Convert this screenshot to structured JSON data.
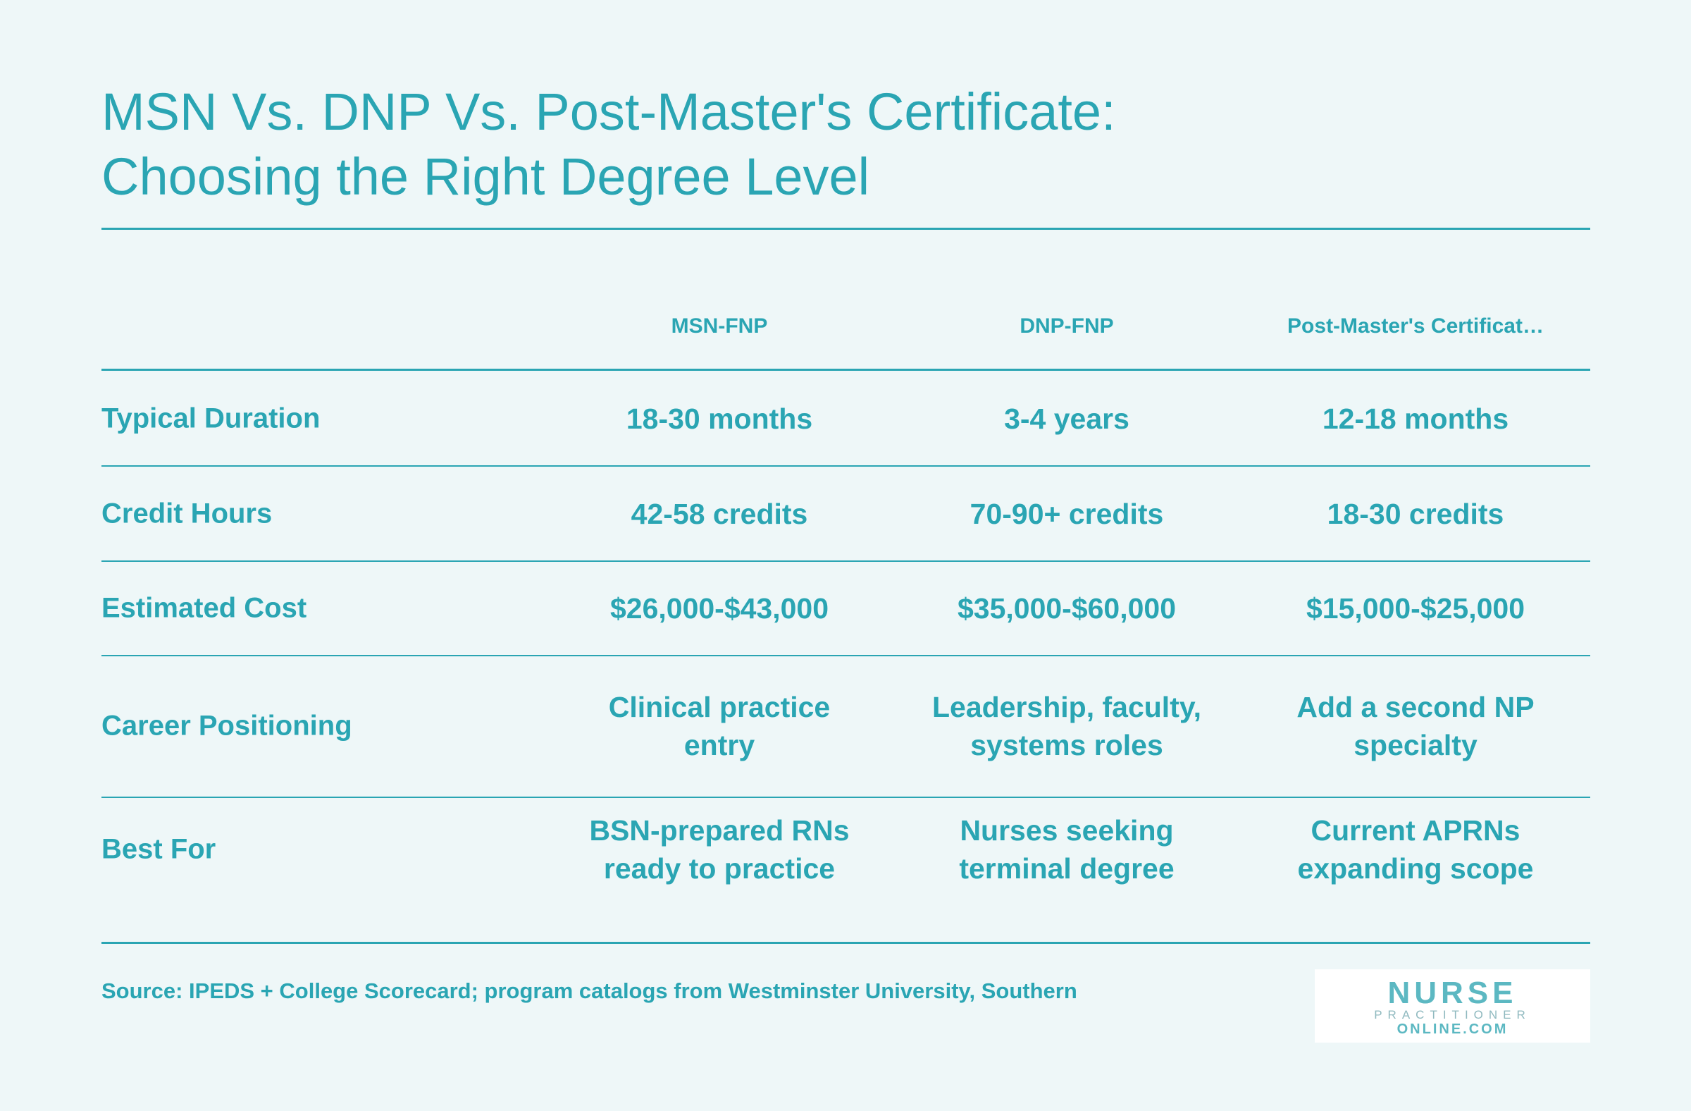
{
  "header": {
    "title_lines": [
      "MSN Vs. DNP Vs. Post-Master's Certificate:",
      "Choosing the Right Degree Level"
    ]
  },
  "table": {
    "columns": [
      "MSN-FNP",
      "DNP-FNP",
      "Post-Master's Certificat…"
    ],
    "rows": [
      {
        "label": "Typical Duration",
        "cells": [
          "18-30 months",
          "3-4 years",
          "12-18 months"
        ]
      },
      {
        "label": "Credit Hours",
        "cells": [
          "42-58 credits",
          "70-90+ credits",
          "18-30 credits"
        ]
      },
      {
        "label": "Estimated Cost",
        "cells": [
          "$26,000-$43,000",
          "$35,000-$60,000",
          "$15,000-$25,000"
        ]
      },
      {
        "label": "Career Positioning",
        "cells": [
          "Clinical practice entry",
          "Leadership, faculty, systems roles",
          "Add a second NP specialty"
        ]
      },
      {
        "label": "Best For",
        "cells": [
          "BSN-prepared RNs ready to practice",
          "Nurses seeking terminal degree",
          "Current APRNs expanding scope"
        ]
      }
    ]
  },
  "footer": {
    "source": "Source: IPEDS + College Scorecard; program catalogs from Westminster University, Southern",
    "logo": {
      "line1": "NURSE",
      "line2": "PRACTITIONER",
      "line3": "ONLINE.COM"
    }
  }
}
